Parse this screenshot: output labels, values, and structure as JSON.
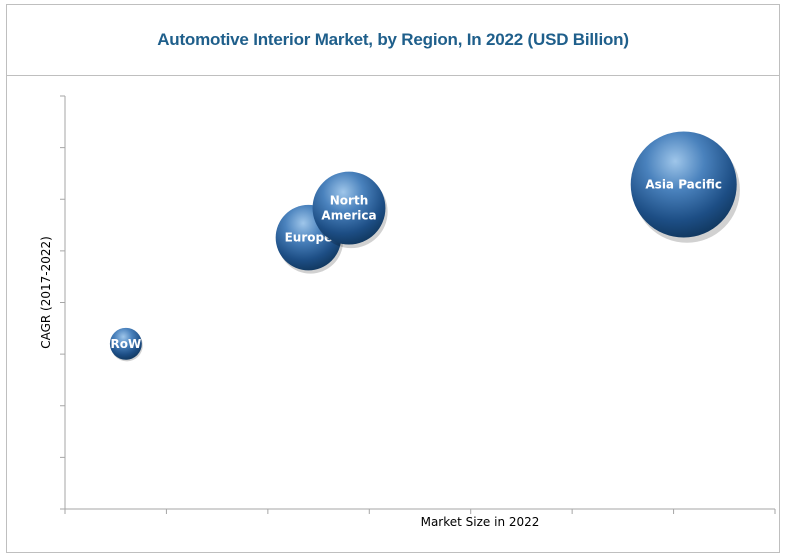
{
  "chart_data": {
    "type": "bubble",
    "title": "Automotive Interior Market, by Region, In 2022 (USD Billion)",
    "xlabel": "Market Size in 2022",
    "ylabel": "CAGR (2017-2022)",
    "x_tick_count": 7,
    "y_tick_count": 8,
    "tick_labels_shown": false,
    "grid": false,
    "legend": "none",
    "series": [
      {
        "name": "RoW",
        "label": "RoW",
        "x": 0.6,
        "y": 2.8,
        "size": 1
      },
      {
        "name": "Europe",
        "label": "Europe",
        "x": 2.4,
        "y": 4.6,
        "size": 4.2
      },
      {
        "name": "North America",
        "label": "North\nAmerica",
        "x": 2.8,
        "y": 5.1,
        "size": 5.2
      },
      {
        "name": "Asia Pacific",
        "label": "Asia Pacific",
        "x": 6.1,
        "y": 5.5,
        "size": 11
      }
    ],
    "colors": {
      "bubble_light": "#9fc6ea",
      "bubble_mid": "#3a6ea8",
      "bubble_dark": "#123a63",
      "title": "#1f5f8b",
      "axis": "#a6a6a6"
    }
  }
}
